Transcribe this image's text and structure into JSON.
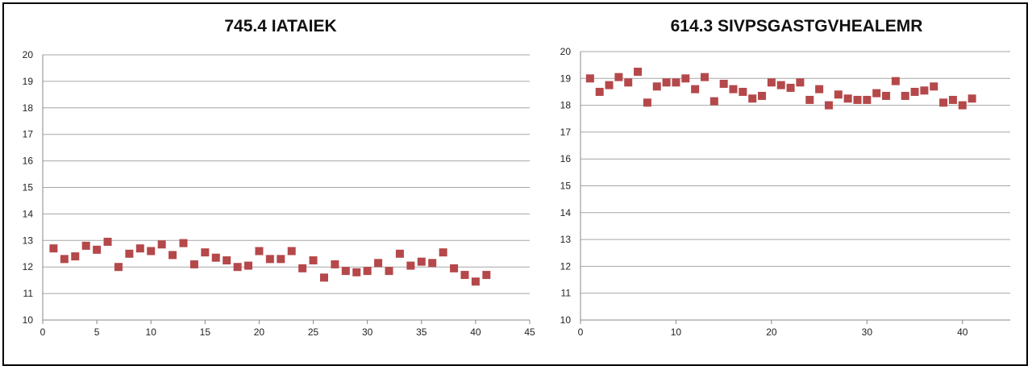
{
  "chart_data": [
    {
      "type": "scatter",
      "title": "745.4 IATAIEK",
      "xlim": [
        0,
        45
      ],
      "ylim": [
        10,
        20
      ],
      "x_ticks": [
        0,
        5,
        10,
        15,
        20,
        25,
        30,
        35,
        40,
        45
      ],
      "y_ticks": [
        10,
        11,
        12,
        13,
        14,
        15,
        16,
        17,
        18,
        19,
        20
      ],
      "grid": true,
      "marker": "square",
      "color": "#b5484a",
      "x": [
        1,
        2,
        3,
        4,
        5,
        6,
        7,
        8,
        9,
        10,
        11,
        12,
        13,
        14,
        15,
        16,
        17,
        18,
        19,
        20,
        21,
        22,
        23,
        24,
        25,
        26,
        27,
        28,
        29,
        30,
        31,
        32,
        33,
        34,
        35,
        36,
        37,
        38,
        39,
        40,
        41
      ],
      "y": [
        12.7,
        12.3,
        12.4,
        12.8,
        12.65,
        12.95,
        12.0,
        12.5,
        12.7,
        12.6,
        12.85,
        12.45,
        12.9,
        12.1,
        12.55,
        12.35,
        12.25,
        12.0,
        12.05,
        12.6,
        12.3,
        12.3,
        12.6,
        11.95,
        12.25,
        11.6,
        12.1,
        11.85,
        11.8,
        11.85,
        12.15,
        11.85,
        12.5,
        12.05,
        12.2,
        12.15,
        12.55,
        11.95,
        11.7,
        11.45,
        11.7
      ]
    },
    {
      "type": "scatter",
      "title": "614.3 SIVPSGASTGVHEALEMR",
      "xlim": [
        0,
        45
      ],
      "ylim": [
        10,
        20
      ],
      "x_ticks": [
        0,
        10,
        20,
        30,
        40
      ],
      "y_ticks": [
        10,
        11,
        12,
        13,
        14,
        15,
        16,
        17,
        18,
        19,
        20
      ],
      "grid": true,
      "marker": "square",
      "color": "#b5484a",
      "x": [
        1,
        2,
        3,
        4,
        5,
        6,
        7,
        8,
        9,
        10,
        11,
        12,
        13,
        14,
        15,
        16,
        17,
        18,
        19,
        20,
        21,
        22,
        23,
        24,
        25,
        26,
        27,
        28,
        29,
        30,
        31,
        32,
        33,
        34,
        35,
        36,
        37,
        38,
        39,
        40,
        41
      ],
      "y": [
        19.0,
        18.5,
        18.75,
        19.05,
        18.85,
        19.25,
        18.1,
        18.7,
        18.85,
        18.85,
        19.0,
        18.6,
        19.05,
        18.15,
        18.8,
        18.6,
        18.5,
        18.25,
        18.35,
        18.85,
        18.75,
        18.65,
        18.85,
        18.2,
        18.6,
        18.0,
        18.4,
        18.25,
        18.2,
        18.2,
        18.45,
        18.35,
        18.9,
        18.35,
        18.5,
        18.55,
        18.7,
        18.1,
        18.2,
        18.0,
        18.25
      ]
    }
  ]
}
